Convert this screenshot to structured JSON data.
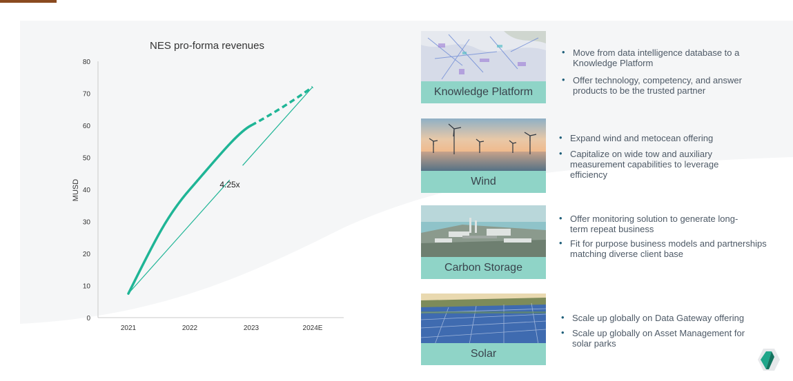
{
  "chart_data": {
    "type": "line",
    "title": "NES pro-forma revenues",
    "xlabel": "",
    "ylabel": "MUSD",
    "categories": [
      "2021",
      "2022",
      "2023",
      "2024E"
    ],
    "yticks": [
      "0",
      "10",
      "20",
      "30",
      "40",
      "50",
      "60",
      "70",
      "80"
    ],
    "ylim": [
      0,
      80
    ],
    "series": [
      {
        "values": [
          7.5,
          40,
          60,
          72
        ],
        "actual_until": "2023",
        "forecast": [
          "2023",
          "2024E"
        ]
      }
    ],
    "annotation": "4.25x",
    "color": "#1fb596"
  },
  "segments": [
    {
      "caption": "Knowledge Platform",
      "image": "map-image",
      "bullets": [
        "Move from data intelligence database to a Knowledge Platform",
        "Offer technology, competency, and answer products to be the trusted partner"
      ]
    },
    {
      "caption": "Wind",
      "image": "offshore-wind-image",
      "bullets": [
        "Expand wind and metocean offering",
        "Capitalize on wide tow and auxiliary measurement capabilities to leverage efficiency"
      ]
    },
    {
      "caption": "Carbon Storage",
      "image": "power-plant-image",
      "bullets": [
        "Offer monitoring solution to generate long-term repeat business",
        "Fit for purpose business models and partnerships matching diverse client base"
      ]
    },
    {
      "caption": "Solar",
      "image": "solar-park-image",
      "bullets": [
        "Scale up globally on Data Gateway offering",
        "Scale up globally on Asset Management for solar parks"
      ]
    }
  ],
  "colors": {
    "accent": "#1fb596",
    "caption_bg": "#8fd4c7",
    "bullet": "#1f5f7a",
    "top_bar": "#8a4a1f"
  },
  "logo": "company-logo-icon"
}
